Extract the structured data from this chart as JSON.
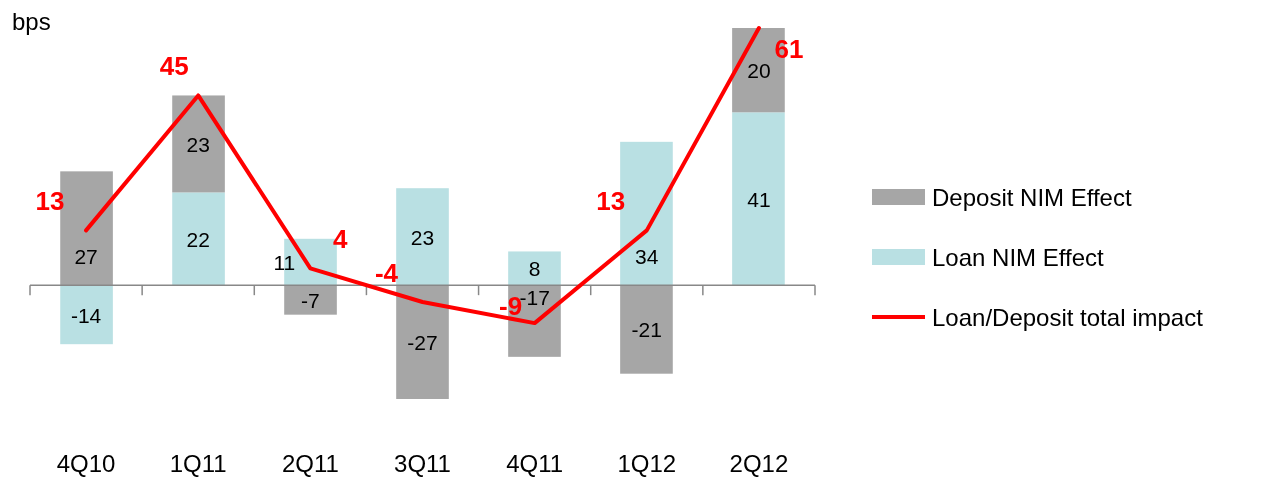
{
  "chart_data": {
    "type": "bar",
    "ylabel": "bps",
    "stacked": true,
    "data_labels": true,
    "legend": "right",
    "categories": [
      "4Q10",
      "1Q11",
      "2Q11",
      "3Q11",
      "4Q11",
      "1Q12",
      "2Q12"
    ],
    "series": [
      {
        "name": "Loan NIM Effect",
        "color": "#b9e0e3",
        "values": [
          -14,
          22,
          11,
          23,
          8,
          34,
          41
        ]
      },
      {
        "name": "Deposit NIM Effect",
        "color": "#a6a6a6",
        "values": [
          27,
          23,
          -7,
          -27,
          -17,
          -21,
          20
        ]
      },
      {
        "name": "Loan/Deposit total impact",
        "type": "line",
        "color": "#ff0000",
        "values": [
          13,
          45,
          4,
          -4,
          -9,
          13,
          61
        ]
      }
    ]
  }
}
